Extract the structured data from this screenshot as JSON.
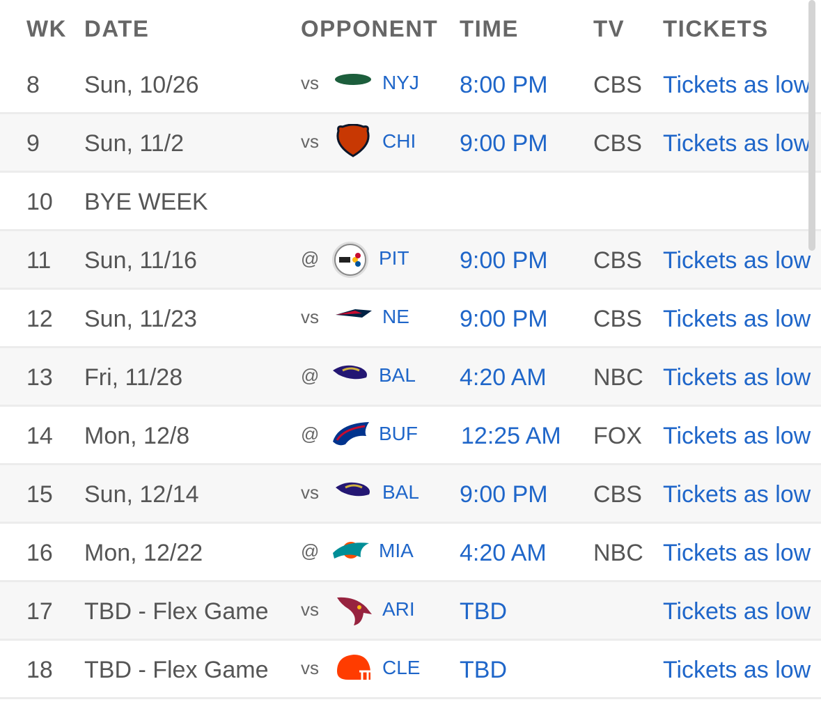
{
  "header": {
    "wk": "WK",
    "date": "DATE",
    "opponent": "OPPONENT",
    "time": "TIME",
    "tv": "TV",
    "tickets": "TICKETS"
  },
  "rows": [
    {
      "wk": 8,
      "date": "Sun, 10/26",
      "location": "vs",
      "opponent": "NYJ",
      "time": "8:00 PM",
      "tv": "CBS",
      "tickets": "Tickets as low"
    },
    {
      "wk": 9,
      "date": "Sun, 11/2",
      "location": "vs",
      "opponent": "CHI",
      "time": "9:00 PM",
      "tv": "CBS",
      "tickets": "Tickets as low"
    },
    {
      "wk": 10,
      "date": "BYE WEEK"
    },
    {
      "wk": 11,
      "date": "Sun, 11/16",
      "location": "@",
      "opponent": "PIT",
      "time": "9:00 PM",
      "tv": "CBS",
      "tickets": "Tickets as low"
    },
    {
      "wk": 12,
      "date": "Sun, 11/23",
      "location": "vs",
      "opponent": "NE",
      "time": "9:00 PM",
      "tv": "CBS",
      "tickets": "Tickets as low"
    },
    {
      "wk": 13,
      "date": "Fri, 11/28",
      "location": "@",
      "opponent": "BAL",
      "time": "4:20 AM",
      "tv": "NBC",
      "tickets": "Tickets as low"
    },
    {
      "wk": 14,
      "date": "Mon, 12/8",
      "location": "@",
      "opponent": "BUF",
      "time": "12:25 AM",
      "tv": "FOX",
      "tickets": "Tickets as low"
    },
    {
      "wk": 15,
      "date": "Sun, 12/14",
      "location": "vs",
      "opponent": "BAL",
      "time": "9:00 PM",
      "tv": "CBS",
      "tickets": "Tickets as low"
    },
    {
      "wk": 16,
      "date": "Mon, 12/22",
      "location": "@",
      "opponent": "MIA",
      "time": "4:20 AM",
      "tv": "NBC",
      "tickets": "Tickets as low"
    },
    {
      "wk": 17,
      "date": "TBD - Flex Game",
      "location": "vs",
      "opponent": "ARI",
      "time": "TBD",
      "tickets": "Tickets as low"
    },
    {
      "wk": 18,
      "date": "TBD - Flex Game",
      "location": "vs",
      "opponent": "CLE",
      "time": "TBD",
      "tickets": "Tickets as low"
    }
  ]
}
